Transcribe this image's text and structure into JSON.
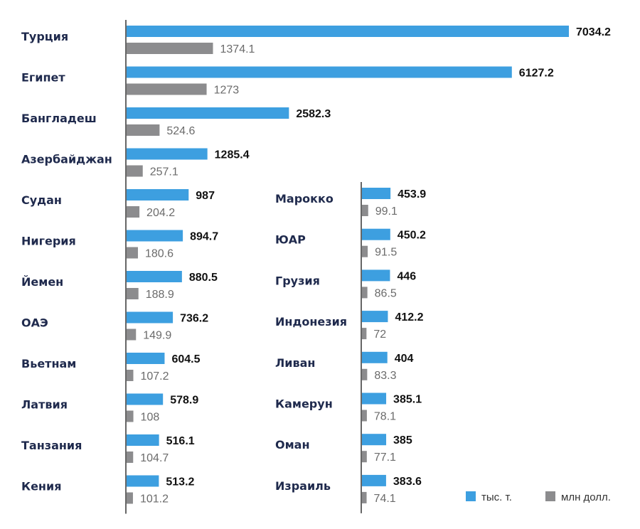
{
  "chart_data": [
    {
      "type": "bar",
      "orientation": "horizontal",
      "categories": [
        "Турция",
        "Египет",
        "Бангладеш",
        "Азербайджан",
        "Судан",
        "Нигерия",
        "Йемен",
        "ОАЭ",
        "Вьетнам",
        "Латвия",
        "Танзания",
        "Кения"
      ],
      "series": [
        {
          "name": "тыс. т.",
          "values": [
            7034.2,
            6127.2,
            2582.3,
            1285.4,
            987,
            894.7,
            880.5,
            736.2,
            604.5,
            578.9,
            516.1,
            513.2
          ]
        },
        {
          "name": "млн долл.",
          "values": [
            1374.1,
            1273,
            524.6,
            257.1,
            204.2,
            180.6,
            188.9,
            149.9,
            107.2,
            108,
            104.7,
            101.2
          ]
        }
      ],
      "value_labels": {
        "tonnes": [
          "7034.2",
          "6127.2",
          "2582.3",
          "1285.4",
          "987",
          "894.7",
          "880.5",
          "736.2",
          "604.5",
          "578.9",
          "516.1",
          "513.2"
        ],
        "dollars": [
          "1374.1",
          "1273",
          "524.6",
          "257.1",
          "204.2",
          "180.6",
          "188.9",
          "149.9",
          "107.2",
          "108",
          "104.7",
          "101.2"
        ]
      }
    },
    {
      "type": "bar",
      "orientation": "horizontal",
      "categories": [
        "Марокко",
        "ЮАР",
        "Грузия",
        "Индонезия",
        "Ливан",
        "Камерун",
        "Оман",
        "Израиль"
      ],
      "series": [
        {
          "name": "тыс. т.",
          "values": [
            453.9,
            450.2,
            446,
            412.2,
            404,
            385.1,
            385,
            383.6
          ]
        },
        {
          "name": "млн долл.",
          "values": [
            99.1,
            91.5,
            86.5,
            72,
            83.3,
            78.1,
            77.1,
            74.1
          ]
        }
      ],
      "value_labels": {
        "tonnes": [
          "453.9",
          "450.2",
          "446",
          "412.2",
          "404",
          "385.1",
          "385",
          "383.6"
        ],
        "dollars": [
          "99.1",
          "91.5",
          "86.5",
          "72",
          "83.3",
          "78.1",
          "77.1",
          "74.1"
        ]
      }
    }
  ],
  "legend": {
    "placement": "bottom-right",
    "items": [
      {
        "label": "тыс. т.",
        "color": "#3d9fe0"
      },
      {
        "label": "млн долл.",
        "color": "#8c8c8e"
      }
    ]
  },
  "colors": {
    "tonnes": "#3d9fe0",
    "dollars": "#8c8c8e",
    "axis": "#333333",
    "category_text": "#1f2a4d"
  }
}
